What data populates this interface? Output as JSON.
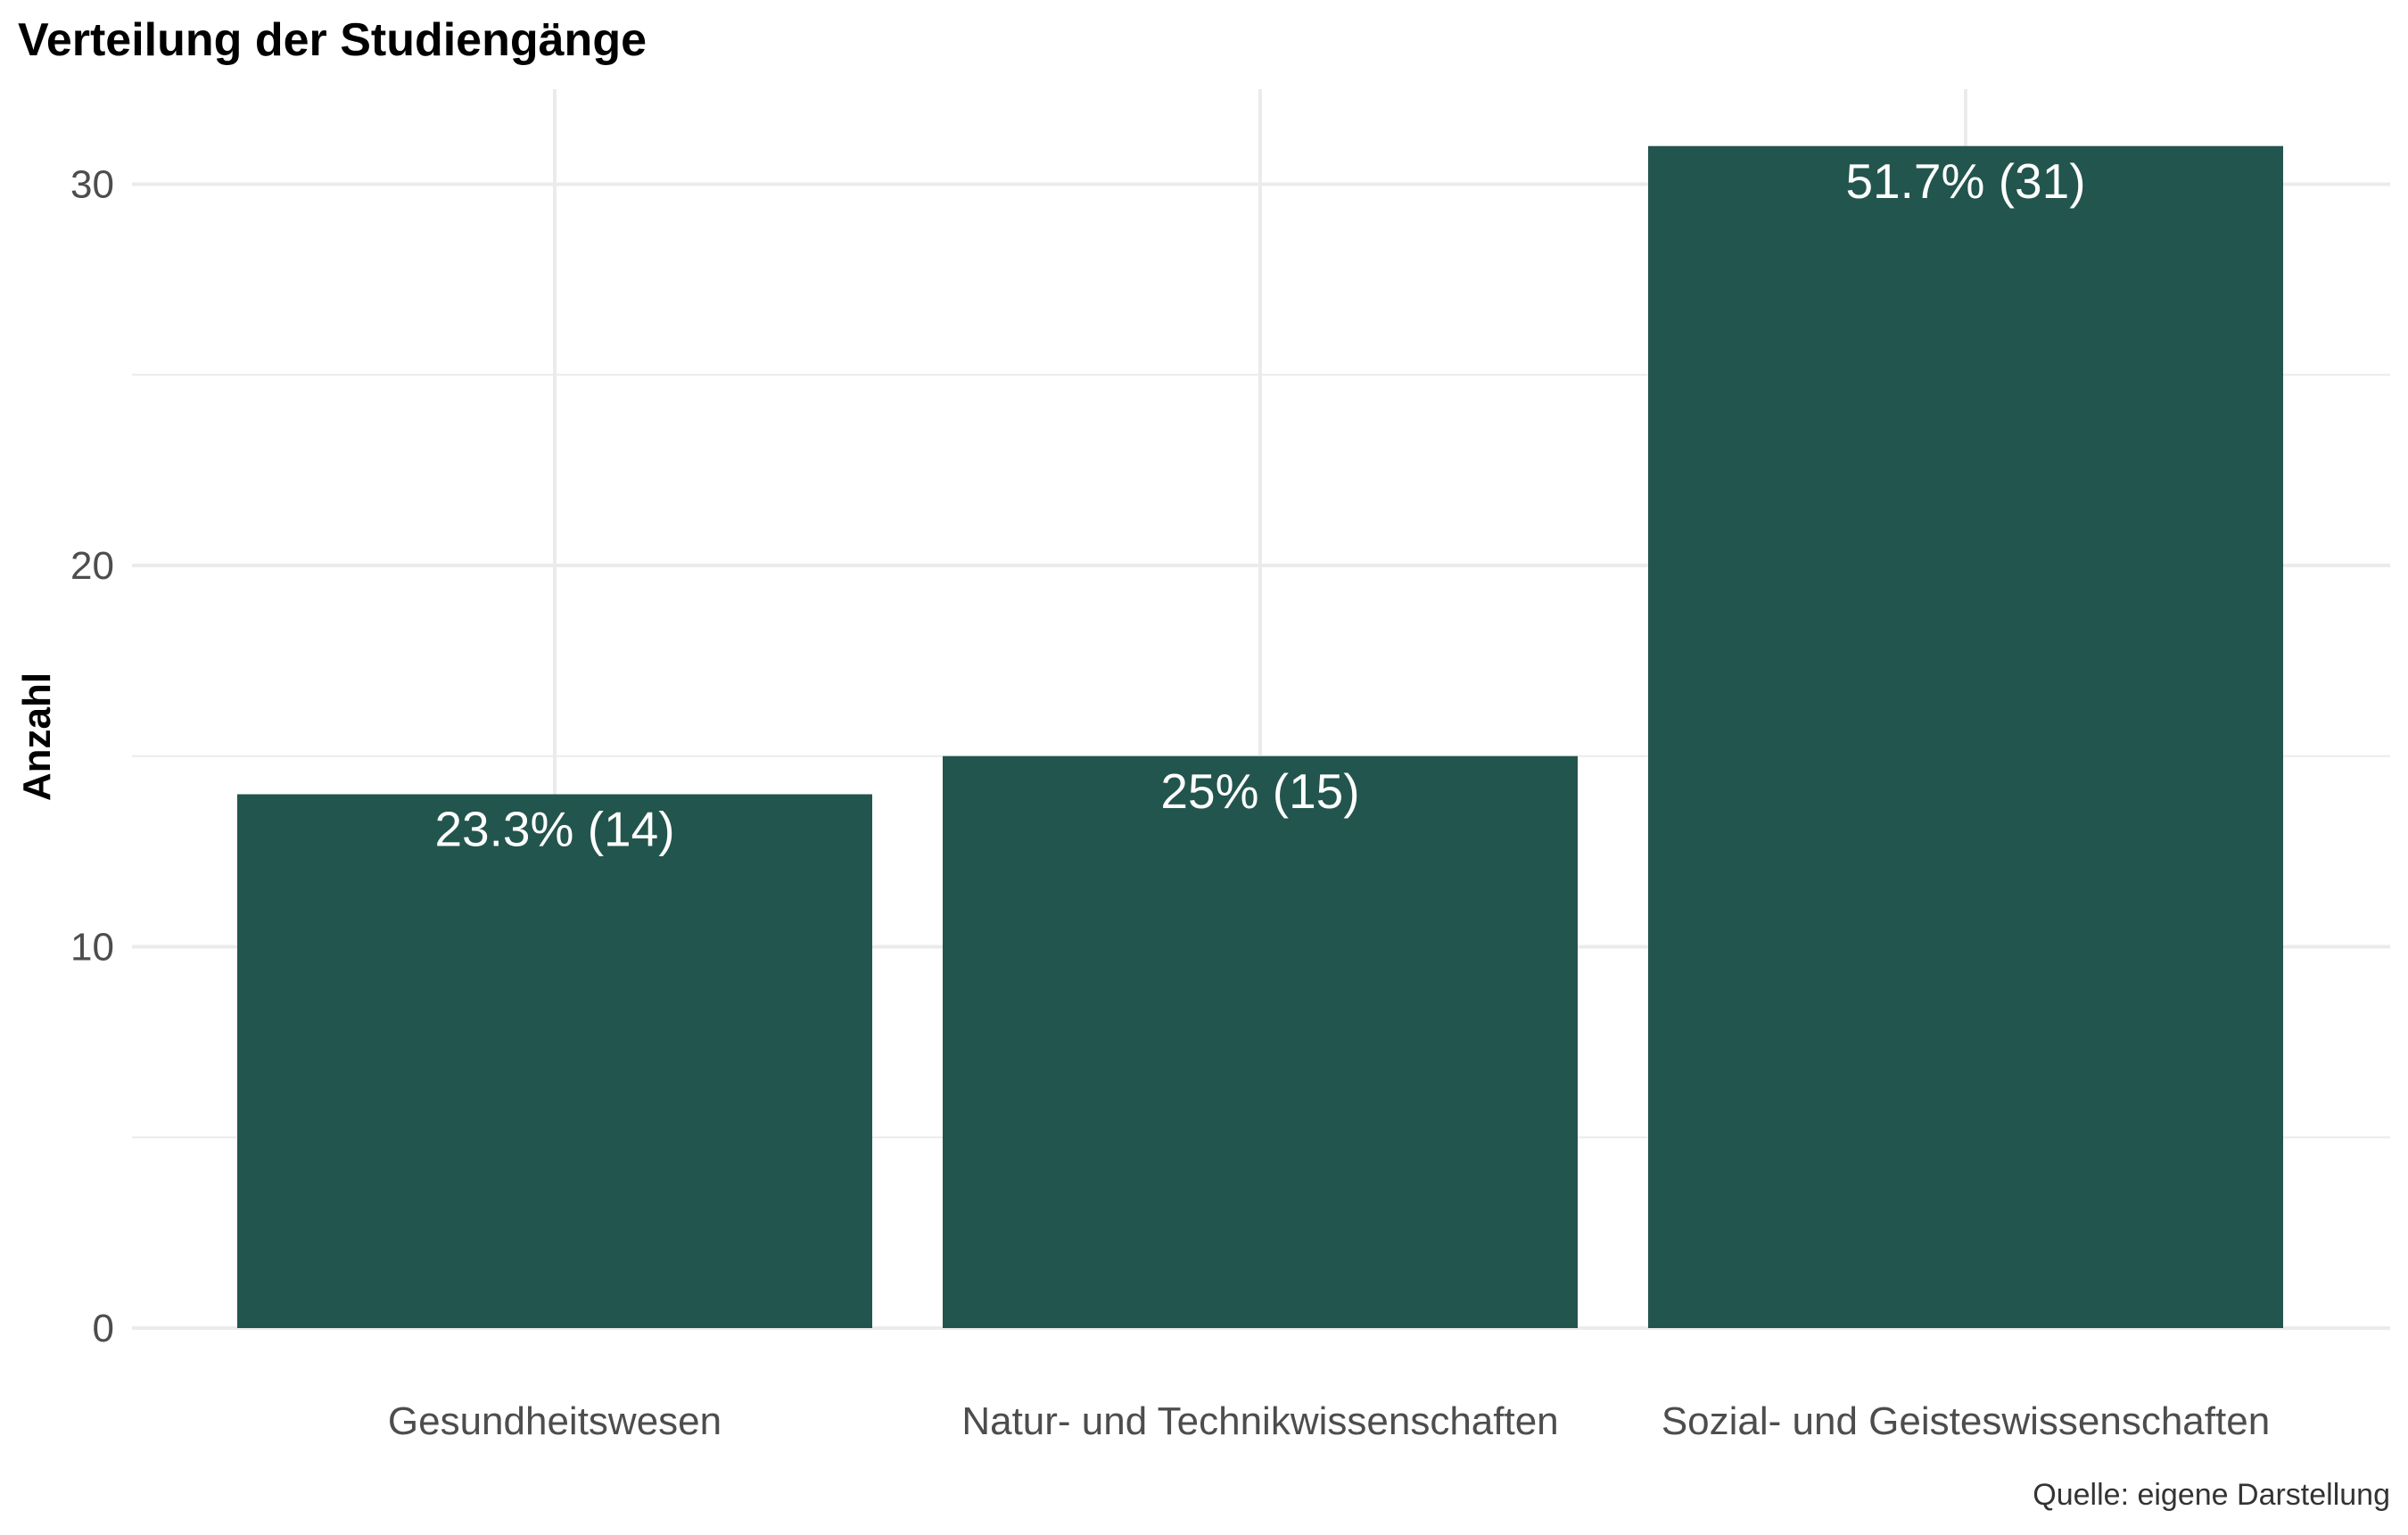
{
  "chart_data": {
    "type": "bar",
    "title": "Verteilung der Studiengänge",
    "xlabel": "",
    "ylabel": "Anzahl",
    "categories": [
      "Gesundheitswesen",
      "Natur- und Technikwissenschaften",
      "Sozial- und Geisteswissenschaften"
    ],
    "values": [
      14,
      15,
      31
    ],
    "data_labels": [
      "23.3% (14)",
      "25% (15)",
      "51.7% (31)"
    ],
    "ylim": [
      0,
      32.5
    ],
    "yticks": [
      0,
      10,
      20,
      30
    ],
    "ytick_labels": [
      "0",
      "10",
      "20",
      "30"
    ],
    "grid": true,
    "legend": "none",
    "caption": "Quelle: eigene Darstellung",
    "colors": {
      "bar": "#22554d",
      "grid": "#ebebeb",
      "background": "#ffffff"
    }
  }
}
